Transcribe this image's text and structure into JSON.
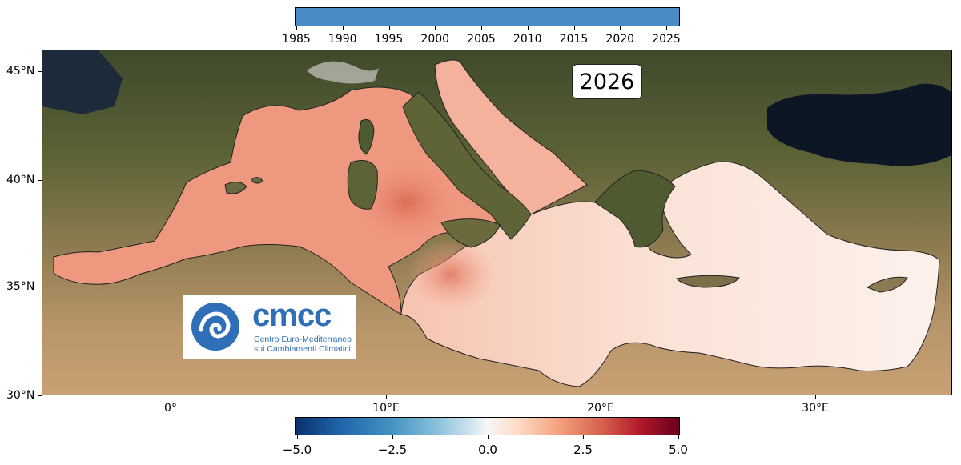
{
  "timeline": {
    "color": "#4a8cc8",
    "ticks": [
      "1985",
      "1990",
      "1995",
      "2000",
      "2005",
      "2010",
      "2015",
      "2020",
      "2025"
    ]
  },
  "map": {
    "year_label": "2026",
    "lat_labels": [
      "45°N",
      "40°N",
      "35°N",
      "30°N"
    ],
    "lon_labels": [
      "0°",
      "10°E",
      "20°E",
      "30°E"
    ]
  },
  "logo": {
    "wordmark": "cmcc",
    "line1": "Centro Euro-Mediterraneo",
    "line2": "sui Cambiamenti Climatici",
    "color": "#2f6fb7",
    "icon": "wave-swirl-icon"
  },
  "colorbar": {
    "ticks": [
      "−5.0",
      "−2.5",
      "0.0",
      "2.5",
      "5.0"
    ],
    "colormap": "RdBu_r"
  }
}
